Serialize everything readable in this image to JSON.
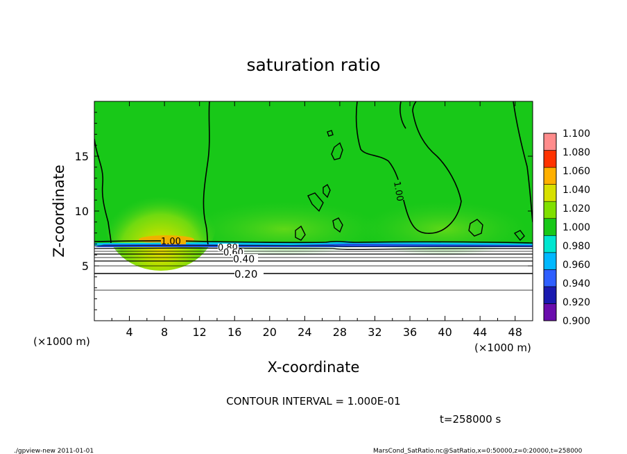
{
  "chart_data": {
    "type": "heatmap",
    "title": "saturation ratio",
    "xlabel": "X-coordinate",
    "ylabel": "Z-coordinate",
    "x_unit_left": "(×1000 m)",
    "x_unit_right": "(×1000 m)",
    "xlim": [
      0,
      50
    ],
    "ylim": [
      0,
      20
    ],
    "x_ticks": [
      4,
      8,
      12,
      16,
      20,
      24,
      28,
      32,
      36,
      40,
      44,
      48
    ],
    "y_ticks": [
      5,
      10,
      15
    ],
    "contour_interval_label": "CONTOUR INTERVAL = 1.000E-01",
    "time_label": "t=258000 s",
    "colorbar": {
      "levels": [
        0.9,
        0.92,
        0.94,
        0.96,
        0.98,
        1.0,
        1.02,
        1.04,
        1.06,
        1.08,
        1.1
      ],
      "level_labels": [
        "0.900",
        "0.920",
        "0.940",
        "0.960",
        "0.980",
        "1.000",
        "1.020",
        "1.040",
        "1.060",
        "1.080",
        "1.100"
      ],
      "colors": [
        "#6a0dad",
        "#1a1ab0",
        "#2f5fff",
        "#00b8ff",
        "#00e6d0",
        "#18c818",
        "#80e000",
        "#d8e000",
        "#ffb000",
        "#ff3300",
        "#ff8c8c"
      ]
    },
    "contour_labels": [
      "1.00",
      "1.00",
      "0.80",
      "0.60",
      "0.40",
      "0.20"
    ],
    "contour_levels": [
      0.1,
      0.2,
      0.3,
      0.4,
      0.5,
      0.6,
      0.7,
      0.8,
      0.9,
      1.0
    ],
    "regions": [
      {
        "description": "upper domain saturation ≈ 1.00",
        "z_range": [
          7.2,
          20
        ],
        "value": 1.0
      },
      {
        "description": "supersaturated maximum near x≈8, z≈7.5",
        "x": 8.5,
        "z": 7.6,
        "value": 1.04
      },
      {
        "description": "lower domain unsaturated",
        "z_range": [
          0,
          7.2
        ],
        "value": "0.1–0.9"
      }
    ]
  },
  "footer": {
    "left": "./gpview-new   2011-01-01",
    "right": "MarsCond_SatRatio.nc@SatRatio,x=0:50000,z=0:20000,t=258000"
  }
}
